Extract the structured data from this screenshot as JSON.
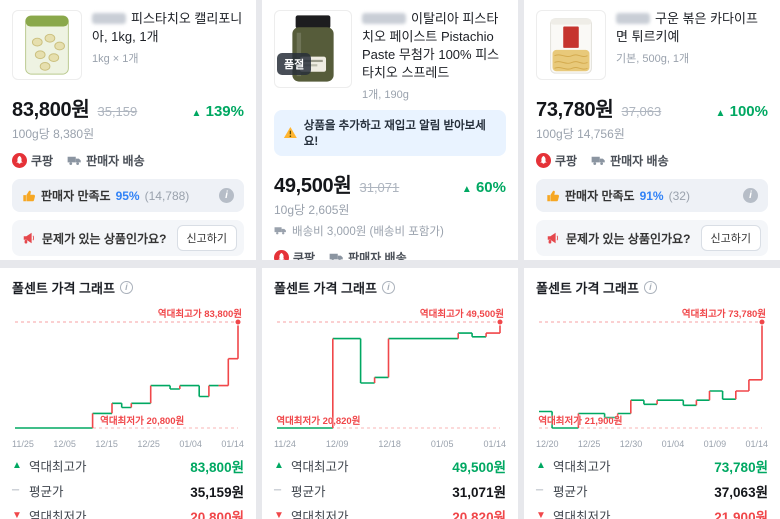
{
  "icons": {
    "up": "▲",
    "down": "▼",
    "dash": "─",
    "info": "i"
  },
  "colors": {
    "green": "#00a862",
    "red": "#f0474a",
    "blue": "#3182f6",
    "coupang_red": "#e53238"
  },
  "common": {
    "chart_title": "폴센트 가격 그래프",
    "coupang": "쿠팡",
    "seller_delivery": "판매자 배송",
    "satisfaction_label": "판매자 만족도",
    "report_question": "문제가 있는 상품인가요?",
    "report_button": "신고하기",
    "stat_max": "역대최고가",
    "stat_avg": "평균가",
    "stat_min": "역대최저가"
  },
  "products": [
    {
      "title": "피스타치오 캘리포니아, 1kg, 1개",
      "subtitle": "1kg × 1개",
      "price": "83,800원",
      "old_price": "35,159",
      "change": "139%",
      "unit_price": "100g당 8,380원",
      "satisfaction_pct": "95%",
      "satisfaction_count": "(14,788)"
    },
    {
      "title": "이탈리아 피스타치오 페이스트 Pistachio Paste 무첨가 100% 피스타치오 스프레드",
      "subtitle": "1개, 190g",
      "soldout_badge": "품절",
      "alert": "상품을 추가하고 재입고 알림 받아보세요!",
      "price": "49,500원",
      "old_price": "31,071",
      "change": "60%",
      "unit_price": "10g당 2,605원",
      "shipping": "배송비 3,000원 (배송비 포함가)"
    },
    {
      "title": "구운 볶은 카다이프 면 튀르키예",
      "subtitle": "기본, 500g, 1개",
      "price": "73,780원",
      "old_price": "37,063",
      "change": "100%",
      "unit_price": "100g당 14,756원",
      "satisfaction_pct": "91%",
      "satisfaction_count": "(32)"
    }
  ],
  "chart_data": [
    {
      "type": "line",
      "title": "폴센트 가격 그래프",
      "x_labels": [
        "11/25",
        "12/05",
        "12/15",
        "12/25",
        "01/04",
        "01/14"
      ],
      "values": [
        20800,
        20800,
        20800,
        20800,
        20800,
        20800,
        20800,
        20800,
        29500,
        29500,
        35500,
        33000,
        35500,
        35500,
        46000,
        46000,
        44000,
        46000,
        46000,
        39500,
        46000,
        46000,
        62000,
        83800
      ],
      "ylim": [
        20800,
        83800
      ],
      "red_from": 22,
      "max_annotation": "역대최고가 83,800원",
      "min_annotation": "역대최저가 20,800원",
      "min_label_left": "38%",
      "stats": {
        "max": "83,800원",
        "avg": "35,159원",
        "min": "20,800원"
      }
    },
    {
      "type": "line",
      "title": "폴센트 가격 그래프",
      "x_labels": [
        "11/24",
        "12/09",
        "12/18",
        "01/05",
        "01/14"
      ],
      "values": [
        20820,
        20820,
        20820,
        20820,
        45000,
        45000,
        33000,
        34500,
        45000,
        45000,
        45000,
        45000,
        45000,
        46500,
        45500,
        46500,
        49500
      ],
      "ylim": [
        20820,
        49500
      ],
      "red_from": 16,
      "max_annotation": "역대최고가 49,500원",
      "min_annotation": "역대최저가 20,820원",
      "min_label_left": "1%",
      "stats": {
        "max": "49,500원",
        "avg": "31,071원",
        "min": "20,820원"
      }
    },
    {
      "type": "line",
      "title": "폴센트 가격 그래프",
      "x_labels": [
        "12/20",
        "12/25",
        "12/30",
        "01/04",
        "01/09",
        "01/14"
      ],
      "values": [
        30000,
        21900,
        21900,
        29000,
        29000,
        27000,
        29000,
        35500,
        33500,
        35500,
        35500,
        33000,
        35500,
        40000,
        36000,
        40000,
        45500,
        73780
      ],
      "ylim": [
        21900,
        73780
      ],
      "red_from": 16,
      "max_annotation": "역대최고가 73,780원",
      "min_annotation": "역대최저가 21,900원",
      "min_label_left": "1%",
      "stats": {
        "max": "73,780원",
        "avg": "37,063원",
        "min": "21,900원"
      }
    }
  ]
}
